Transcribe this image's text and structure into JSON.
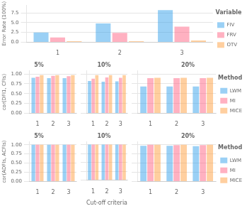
{
  "chart_data": [
    {
      "type": "bar",
      "categories": [
        "1",
        "2",
        "3"
      ],
      "series": [
        {
          "name": "FIV",
          "values": [
            2.5,
            4.8,
            8.2
          ]
        },
        {
          "name": "FRV",
          "values": [
            1.2,
            2.4,
            4.0
          ]
        },
        {
          "name": "OTV",
          "values": [
            0.25,
            0.25,
            0.45
          ]
        }
      ],
      "ylabel": "Error Rate (100%)",
      "ylim": [
        0,
        9.5
      ],
      "yticks": [
        {
          "value": 0,
          "label": "0.0"
        },
        2.5,
        {
          "value": 5,
          "label": "5.0"
        },
        7.5
      ],
      "grid": true,
      "legend": "right",
      "legend_title": "Variable"
    },
    {
      "type": "bar",
      "title": "5%",
      "categories": [
        "1",
        "2",
        "3"
      ],
      "series": [
        {
          "name": "LWM",
          "values": [
            0.9,
            0.89,
            0.89
          ]
        },
        {
          "name": "MI",
          "values": [
            0.93,
            0.95,
            0.94
          ]
        },
        {
          "name": "MICE",
          "values": [
            0.97,
            0.97,
            0.97
          ]
        }
      ],
      "ylabel": "cor(DFI1, CFIs)",
      "ylim": [
        0.0,
        1.08
      ],
      "yticks": [
        {
          "value": 0,
          "label": "0.00"
        },
        0.25,
        {
          "value": 0.5,
          "label": "0.50"
        },
        0.75,
        {
          "value": 1,
          "label": "1.00"
        }
      ],
      "grid": true
    },
    {
      "type": "bar",
      "title": "10%",
      "categories": [
        "1",
        "2",
        "3"
      ],
      "series": [
        {
          "name": "LWM",
          "values": [
            0.82,
            0.8,
            0.81
          ]
        },
        {
          "name": "MI",
          "values": [
            0.88,
            0.91,
            0.9
          ]
        },
        {
          "name": "MICE",
          "values": [
            0.97,
            0.97,
            0.97
          ]
        }
      ],
      "ylim": [
        0.0,
        1.08
      ],
      "yticks": [
        0,
        0.25,
        0.5,
        0.75,
        1
      ],
      "grid": true,
      "tick_labels": "x"
    },
    {
      "type": "bar",
      "title": "20%",
      "categories": [
        "1",
        "2",
        "3"
      ],
      "series": [
        {
          "name": "LWM",
          "values": [
            0.68,
            0.68,
            0.68
          ]
        },
        {
          "name": "MI",
          "values": [
            0.89,
            0.89,
            0.89
          ]
        },
        {
          "name": "MICE",
          "values": [
            0.9,
            0.9,
            0.9
          ]
        }
      ],
      "ylim": [
        0.0,
        1.08
      ],
      "yticks": [
        0,
        0.25,
        0.5,
        0.75,
        1
      ],
      "grid": true,
      "tick_labels": "x",
      "legend": "right",
      "legend_title": "Method"
    },
    {
      "type": "bar",
      "title": "5%",
      "categories": [
        "1",
        "2",
        "3"
      ],
      "series": [
        {
          "name": "LWM",
          "values": [
            1.0,
            1.0,
            1.0
          ]
        },
        {
          "name": "MI",
          "values": [
            1.0,
            1.0,
            1.0
          ]
        },
        {
          "name": "MICE",
          "values": [
            1.0,
            1.0,
            1.0
          ]
        }
      ],
      "ylabel": "cor(ADFIs, ACFIs)",
      "ylim": [
        0.0,
        1.08
      ],
      "yticks": [
        {
          "value": 0,
          "label": "0.00"
        },
        0.25,
        {
          "value": 0.5,
          "label": "0.50"
        },
        0.75,
        {
          "value": 1,
          "label": "1.00"
        }
      ],
      "grid": true
    },
    {
      "type": "bar",
      "title": "10%",
      "categories": [
        "1",
        "2",
        "3"
      ],
      "series": [
        {
          "name": "LWM",
          "values": [
            1.0,
            1.0,
            1.0
          ]
        },
        {
          "name": "MI",
          "values": [
            1.0,
            1.0,
            1.0
          ]
        },
        {
          "name": "MICE",
          "values": [
            1.0,
            1.0,
            1.0
          ]
        }
      ],
      "xlabel": "Cut-off criteria",
      "ylim": [
        0.0,
        1.08
      ],
      "yticks": [
        0,
        0.25,
        0.5,
        0.75,
        1
      ],
      "grid": true,
      "tick_labels": "x"
    },
    {
      "type": "bar",
      "title": "20%",
      "categories": [
        "1",
        "2",
        "3"
      ],
      "series": [
        {
          "name": "LWM",
          "values": [
            0.97,
            0.97,
            0.96
          ]
        },
        {
          "name": "MI",
          "values": [
            1.0,
            0.99,
            0.99
          ]
        },
        {
          "name": "MICE",
          "values": [
            1.0,
            1.0,
            1.0
          ]
        }
      ],
      "ylim": [
        0.0,
        1.08
      ],
      "yticks": [
        0,
        0.25,
        0.5,
        0.75,
        1
      ],
      "grid": true,
      "tick_labels": "x",
      "legend": "right",
      "legend_title": "Method"
    }
  ]
}
